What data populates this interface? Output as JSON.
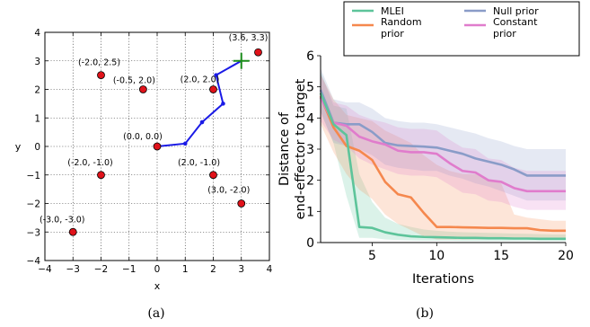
{
  "chart_data": [
    {
      "type": "scatter",
      "panel": "a",
      "caption": "(a)",
      "xlabel": "x",
      "ylabel": "y",
      "xlim": [
        -4,
        4
      ],
      "ylim": [
        -4,
        4
      ],
      "xticks": [
        -4,
        -3,
        -2,
        -1,
        0,
        1,
        2,
        3,
        4
      ],
      "yticks": [
        -4,
        -3,
        -2,
        -1,
        0,
        1,
        2,
        3,
        4
      ],
      "grid": true,
      "points": [
        {
          "x": 3.6,
          "y": 3.3,
          "label": "(3.6, 3.3)"
        },
        {
          "x": -2.0,
          "y": 2.5,
          "label": "(-2.0, 2.5)"
        },
        {
          "x": -0.5,
          "y": 2.0,
          "label": "(-0.5, 2.0)"
        },
        {
          "x": 2.0,
          "y": 2.0,
          "label": "(2.0, 2.0)"
        },
        {
          "x": 0.0,
          "y": 0.0,
          "label": "(0.0, 0.0)"
        },
        {
          "x": -2.0,
          "y": -1.0,
          "label": "(-2.0, -1.0)"
        },
        {
          "x": 2.0,
          "y": -1.0,
          "label": "(2.0, -1.0)"
        },
        {
          "x": 3.0,
          "y": -2.0,
          "label": "(3.0, -2.0)"
        },
        {
          "x": -3.0,
          "y": -3.0,
          "label": "(-3.0, -3.0)"
        }
      ],
      "arm": [
        [
          0.0,
          0.0
        ],
        [
          1.0,
          0.1
        ],
        [
          1.6,
          0.85
        ],
        [
          2.35,
          1.5
        ],
        [
          2.1,
          2.5
        ],
        [
          3.0,
          3.0
        ]
      ],
      "target": {
        "x": 3.0,
        "y": 3.0
      },
      "colors": {
        "point": "#e0121a",
        "arm": "#1a1ae6",
        "target": "#1a8c1a"
      }
    },
    {
      "type": "line",
      "panel": "b",
      "caption": "(b)",
      "xlabel": "Iterations",
      "ylabel_lines": [
        "Distance of",
        "end-effector to target"
      ],
      "xlim": [
        1,
        20
      ],
      "ylim": [
        0,
        6
      ],
      "xticks": [
        5,
        10,
        15,
        20
      ],
      "yticks": [
        0,
        1,
        2,
        3,
        4,
        5,
        6
      ],
      "grid": false,
      "legend_position": "top",
      "series": [
        {
          "name": "MLEI",
          "color": "#5dc49a",
          "x": [
            1,
            2,
            3,
            4,
            5,
            6,
            7,
            8,
            9,
            10,
            11,
            12,
            13,
            14,
            15,
            16,
            17,
            18,
            19,
            20
          ],
          "values": [
            4.8,
            3.8,
            3.45,
            0.5,
            0.47,
            0.33,
            0.25,
            0.2,
            0.18,
            0.17,
            0.16,
            0.15,
            0.15,
            0.14,
            0.14,
            0.13,
            0.13,
            0.12,
            0.12,
            0.12
          ],
          "lower": [
            4.2,
            3.2,
            1.5,
            0.15,
            0.15,
            0.1,
            0.08,
            0.07,
            0.06,
            0.06,
            0.06,
            0.05,
            0.05,
            0.05,
            0.05,
            0.05,
            0.05,
            0.05,
            0.05,
            0.05
          ],
          "upper": [
            5.5,
            4.4,
            4.3,
            2.2,
            1.3,
            0.8,
            0.6,
            0.5,
            0.42,
            0.38,
            0.35,
            0.33,
            0.32,
            0.31,
            0.3,
            0.29,
            0.28,
            0.27,
            0.26,
            0.26
          ]
        },
        {
          "name": "Random prior",
          "color": "#f5884e",
          "x": [
            1,
            2,
            3,
            4,
            5,
            6,
            7,
            8,
            9,
            10,
            11,
            12,
            13,
            14,
            15,
            16,
            17,
            18,
            19,
            20
          ],
          "values": [
            4.7,
            3.7,
            3.1,
            2.95,
            2.65,
            1.95,
            1.55,
            1.45,
            0.95,
            0.5,
            0.5,
            0.49,
            0.48,
            0.47,
            0.47,
            0.46,
            0.46,
            0.4,
            0.38,
            0.38
          ],
          "lower": [
            3.8,
            2.9,
            2.2,
            1.7,
            1.4,
            0.9,
            0.6,
            0.4,
            0.2,
            0.1,
            0.1,
            0.1,
            0.1,
            0.1,
            0.1,
            0.1,
            0.1,
            0.1,
            0.1,
            0.1
          ],
          "upper": [
            5.4,
            4.6,
            4.1,
            4.0,
            3.9,
            3.6,
            3.4,
            3.2,
            2.8,
            2.5,
            2.3,
            2.2,
            2.2,
            2.0,
            1.9,
            0.9,
            0.8,
            0.75,
            0.7,
            0.7
          ]
        },
        {
          "name": "Null prior",
          "color": "#8a9cc8",
          "x": [
            1,
            2,
            3,
            4,
            5,
            6,
            7,
            8,
            9,
            10,
            11,
            12,
            13,
            14,
            15,
            16,
            17,
            18,
            19,
            20
          ],
          "values": [
            4.9,
            3.85,
            3.8,
            3.8,
            3.55,
            3.2,
            3.12,
            3.1,
            3.08,
            3.05,
            2.95,
            2.85,
            2.7,
            2.6,
            2.5,
            2.35,
            2.15,
            2.15,
            2.15,
            2.15
          ],
          "lower": [
            4.2,
            3.2,
            3.1,
            3.0,
            2.8,
            2.5,
            2.4,
            2.35,
            2.3,
            2.3,
            2.15,
            2.05,
            1.9,
            1.8,
            1.65,
            1.5,
            1.35,
            1.35,
            1.35,
            1.35
          ],
          "upper": [
            5.6,
            4.6,
            4.5,
            4.5,
            4.3,
            4.0,
            3.9,
            3.85,
            3.85,
            3.8,
            3.7,
            3.6,
            3.5,
            3.35,
            3.25,
            3.1,
            3.0,
            3.0,
            3.0,
            3.0
          ]
        },
        {
          "name": "Constant prior",
          "color": "#e07ccc",
          "x": [
            1,
            2,
            3,
            4,
            5,
            6,
            7,
            8,
            9,
            10,
            11,
            12,
            13,
            14,
            15,
            16,
            17,
            18,
            19,
            20
          ],
          "values": [
            4.65,
            3.85,
            3.75,
            3.4,
            3.25,
            3.15,
            2.95,
            2.9,
            2.9,
            2.85,
            2.55,
            2.3,
            2.25,
            2.0,
            1.95,
            1.75,
            1.65,
            1.65,
            1.65,
            1.65
          ],
          "lower": [
            3.9,
            3.3,
            3.1,
            2.7,
            2.5,
            2.35,
            2.2,
            2.15,
            2.15,
            2.1,
            1.85,
            1.6,
            1.55,
            1.35,
            1.3,
            1.15,
            1.05,
            1.05,
            1.05,
            1.05
          ],
          "upper": [
            5.4,
            4.5,
            4.4,
            4.1,
            3.95,
            3.85,
            3.7,
            3.65,
            3.65,
            3.6,
            3.3,
            3.05,
            3.0,
            2.7,
            2.65,
            2.4,
            2.3,
            2.3,
            2.3,
            2.3
          ]
        }
      ]
    }
  ]
}
